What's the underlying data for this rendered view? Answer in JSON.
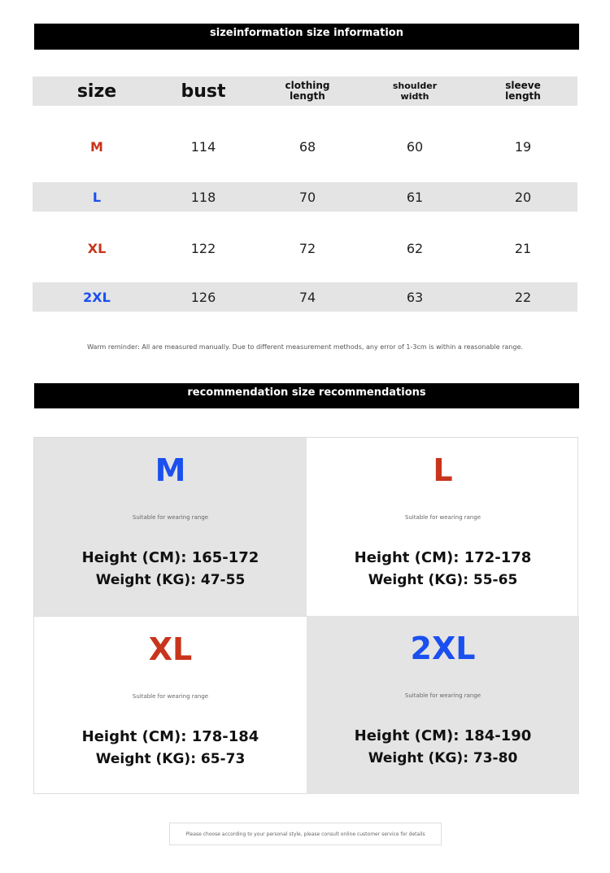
{
  "size_info": {
    "title": "sizeinformation size information",
    "headers": [
      "size",
      "bust",
      "clothing length",
      "shoulder width",
      "sleeve length"
    ],
    "rows": [
      {
        "size": "M",
        "color": "#c8341c",
        "bust": "114",
        "length": "68",
        "shoulder": "60",
        "sleeve": "19"
      },
      {
        "size": "L",
        "color": "#1a4ff0",
        "bust": "118",
        "length": "70",
        "shoulder": "61",
        "sleeve": "20"
      },
      {
        "size": "XL",
        "color": "#c8341c",
        "bust": "122",
        "length": "72",
        "shoulder": "62",
        "sleeve": "21"
      },
      {
        "size": "2XL",
        "color": "#1a4ff0",
        "bust": "126",
        "length": "74",
        "shoulder": "63",
        "sleeve": "22"
      }
    ],
    "reminder": "Warm reminder: All are measured manually. Due to different measurement methods, any error of 1-3cm is within a reasonable range."
  },
  "recommendations": {
    "title": "recommendation size recommendations",
    "cards": [
      {
        "size": "M",
        "suitable": "Suitable for wearing range",
        "height": "Height (CM): 165-172",
        "weight": "Weight (KG): 47-55"
      },
      {
        "size": "L",
        "suitable": "Suitable for wearing range",
        "height": "Height (CM): 172-178",
        "weight": "Weight (KG): 55-65"
      },
      {
        "size": "XL",
        "suitable": "Suitable for wearing range",
        "height": "Height (CM): 178-184",
        "weight": "Weight (KG): 65-73"
      },
      {
        "size": "2XL",
        "suitable": "Suitable for wearing range",
        "height": "Height (CM): 184-190",
        "weight": "Weight (KG): 73-80"
      }
    ]
  },
  "footer": "Please choose according to your personal style, please consult online customer service for details"
}
